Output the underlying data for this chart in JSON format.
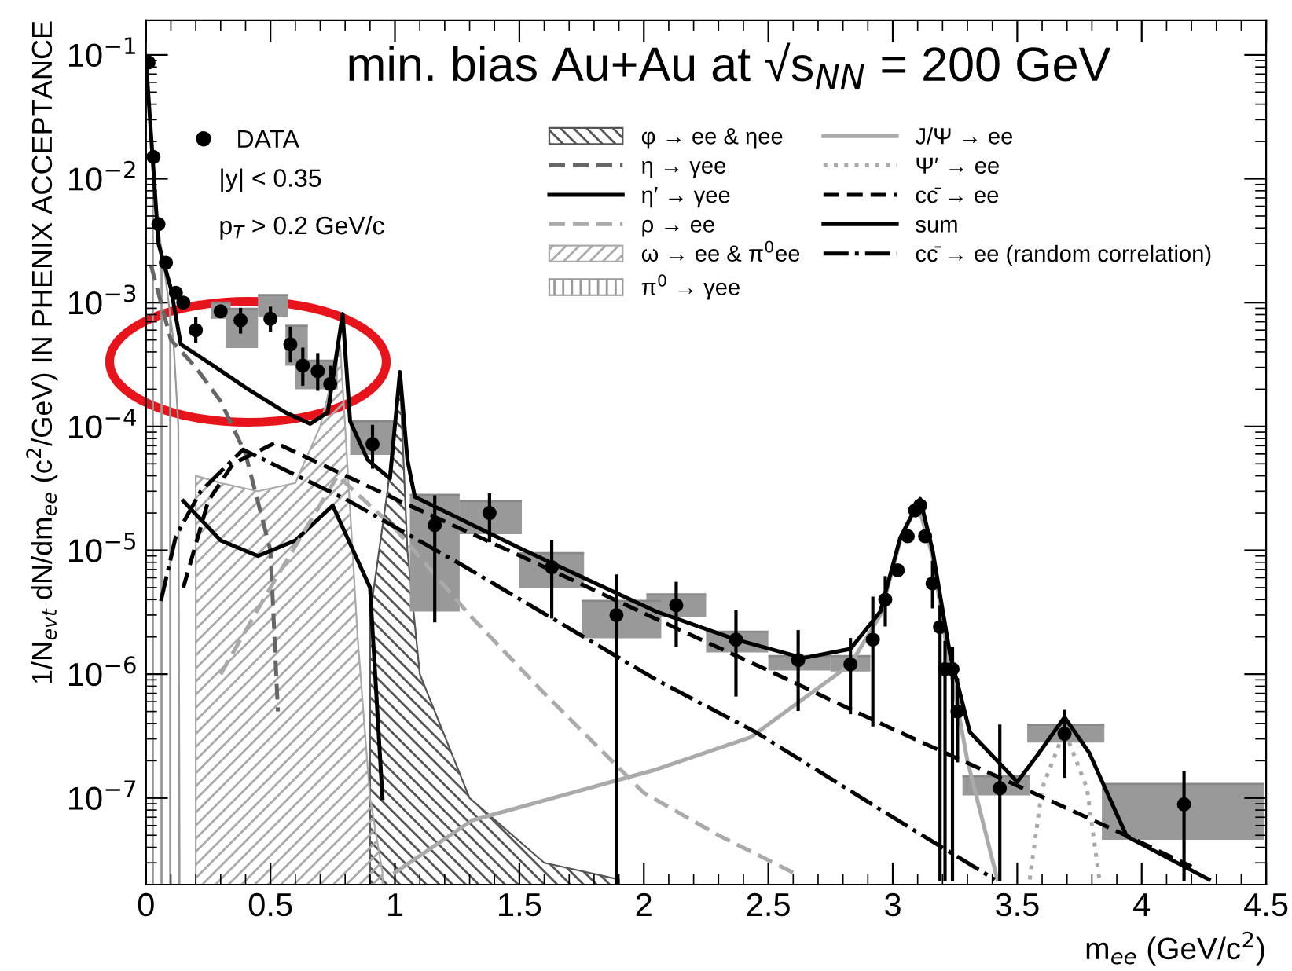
{
  "chart_data": {
    "type": "line",
    "title": "min. bias Au+Au at √s$_{NN}$ = 200 GeV",
    "xlabel": "m$_{ee}$ (GeV/c$^{2}$)",
    "ylabel": "1/N$_{evt}$ dN/dm$_{ee}$ (c$^{2}$/GeV) IN PHENIX ACCEPTANCE",
    "annotations": [
      "|y| < 0.35",
      "p$_{T}$ > 0.2 GeV/c"
    ],
    "log": "y",
    "xlim": [
      0,
      4.5
    ],
    "ylim": [
      2e-08,
      0.19
    ],
    "xticks": [
      0,
      0.5,
      1,
      1.5,
      2,
      2.5,
      3,
      3.5,
      4,
      4.5
    ],
    "yticks": [
      {
        "value": 1e-07,
        "label": "10$^{−7}$"
      },
      {
        "value": 1e-06,
        "label": "10$^{−6}$"
      },
      {
        "value": 1e-05,
        "label": "10$^{−5}$"
      },
      {
        "value": 0.0001,
        "label": "10$^{−4}$"
      },
      {
        "value": 0.001,
        "label": "10$^{−3}$"
      },
      {
        "value": 0.01,
        "label": "10$^{−2}$"
      },
      {
        "value": 0.1,
        "label": "10$^{−1}$"
      }
    ],
    "grid": false,
    "legend": "top",
    "marker": "none",
    "series": [
      {
        "type": "area",
        "name": "φ → ee & ηee",
        "color": "#555555",
        "x": [
          0.9,
          0.97,
          1.02,
          1.05,
          1.1,
          1.3,
          1.6,
          1.9
        ],
        "values": [
          3e-06,
          3e-05,
          0.00025,
          1e-05,
          1e-06,
          1e-07,
          3e-08,
          2.2e-08
        ]
      },
      {
        "type": "area",
        "name": "ω → ee & π$^{0}$ee",
        "color": "#aaaaaa",
        "x": [
          0.2,
          0.3,
          0.45,
          0.6,
          0.7,
          0.78,
          0.8,
          0.85,
          0.9,
          0.95
        ],
        "values": [
          4e-05,
          3.5e-05,
          3e-05,
          3.5e-05,
          0.0001,
          0.00045,
          0.0001,
          2e-06,
          1e-07,
          2.5e-08
        ]
      },
      {
        "type": "area",
        "name": "π$^{0}$ → γee",
        "color": "#999999",
        "x": [
          0,
          0.02,
          0.05,
          0.08,
          0.11,
          0.13,
          0.135
        ],
        "values": [
          0.08,
          0.02,
          0.004,
          0.0015,
          0.0005,
          0.0001,
          2.5e-08
        ]
      },
      {
        "name": "η → γee",
        "color": "#666666",
        "line_style": "dashed",
        "x": [
          0.02,
          0.1,
          0.2,
          0.3,
          0.4,
          0.5,
          0.53
        ],
        "values": [
          0.002,
          0.0005,
          0.0003,
          0.00016,
          6e-05,
          1e-05,
          5e-07
        ]
      },
      {
        "name": "η′ → γee",
        "color": "#000000",
        "line_style": "solid",
        "x": [
          0.15,
          0.3,
          0.45,
          0.6,
          0.75,
          0.9,
          0.95
        ],
        "values": [
          2.5e-05,
          1.2e-05,
          9e-06,
          1.2e-05,
          2.3e-05,
          5e-06,
          1e-07
        ]
      },
      {
        "name": "ρ → ee",
        "color": "#aaaaaa",
        "line_style": "dashed",
        "x": [
          0.3,
          0.5,
          0.77,
          1.0,
          1.3,
          1.6,
          2.0,
          2.3,
          2.6
        ],
        "values": [
          1e-06,
          5e-06,
          4e-05,
          1.5e-05,
          3e-06,
          7e-07,
          1.1e-07,
          5e-08,
          2.5e-08
        ]
      },
      {
        "name": "J/Ψ → ee",
        "color": "#aaaaaa",
        "line_style": "solid",
        "x": [
          1.0,
          1.31,
          2.05,
          2.43,
          2.83,
          2.95,
          3.03,
          3.1,
          3.16,
          3.22,
          3.3,
          3.42
        ],
        "values": [
          2.5e-08,
          6.6e-08,
          1.7e-07,
          3.1e-07,
          1.2e-06,
          3e-06,
          1.2e-05,
          2.4e-05,
          9e-06,
          1.5e-06,
          2e-07,
          2.2e-08
        ]
      },
      {
        "name": "Ψ′ → ee",
        "color": "#aaaaaa",
        "line_style": "dotted",
        "x": [
          3.55,
          3.6,
          3.69,
          3.78,
          3.83
        ],
        "values": [
          2.2e-08,
          1.2e-07,
          3.5e-07,
          1.2e-07,
          2.2e-08
        ]
      },
      {
        "name": "cc̄ → ee",
        "color": "#000000",
        "line_style": "dashed",
        "x": [
          0.15,
          0.25,
          0.35,
          0.52,
          1.0,
          1.5,
          2.0,
          2.5,
          3.0,
          3.5,
          3.9,
          4.2
        ],
        "values": [
          5e-06,
          2.5e-05,
          5e-05,
          7.4e-05,
          2.6e-05,
          9.1e-06,
          3.1e-06,
          1.07e-06,
          3.6e-07,
          1.26e-07,
          5.4e-08,
          2.8e-08
        ]
      },
      {
        "name": "sum",
        "color": "#000000",
        "line_style": "solid",
        "x": [
          0.0,
          0.05,
          0.1,
          0.14,
          0.27,
          0.41,
          0.56,
          0.66,
          0.73,
          0.79,
          0.82,
          0.89,
          0.98,
          1.02,
          1.05,
          1.08,
          1.52,
          2.05,
          2.37,
          2.64,
          2.83,
          2.95,
          3.03,
          3.11,
          3.16,
          3.23,
          3.31,
          3.5,
          3.58,
          3.69,
          3.79,
          3.94,
          4.27
        ],
        "values": [
          0.09,
          0.003,
          0.0013,
          0.00046,
          0.00031,
          0.0002,
          0.00013,
          0.000105,
          0.00013,
          0.00081,
          0.00011,
          5.4e-05,
          3.8e-05,
          0.000275,
          5.4e-05,
          2.7e-05,
          1e-05,
          3.2e-06,
          1.9e-06,
          1.35e-06,
          1.6e-06,
          3.2e-06,
          1.26e-05,
          2.6e-05,
          1e-05,
          1.45e-06,
          3.4e-07,
          1.35e-07,
          2.2e-07,
          4.5e-07,
          2.3e-07,
          4.9e-08,
          2.2e-08
        ]
      },
      {
        "name": "cc̄ → ee (random correlation)",
        "color": "#000000",
        "line_style": "dashdot",
        "x": [
          0.06,
          0.12,
          0.22,
          0.39,
          0.8,
          1.27,
          2.05,
          2.45,
          3.0,
          3.41
        ],
        "values": [
          3.9e-06,
          1.3e-05,
          3e-05,
          6.5e-05,
          2.6e-05,
          7.6e-06,
          9e-07,
          3.4e-07,
          7e-08,
          2.2e-08
        ]
      },
      {
        "type": "bar",
        "color": "#999999",
        "x": [
          0.3,
          0.385,
          0.51,
          0.605,
          0.685,
          0.91,
          1.16,
          1.385,
          1.63,
          1.91,
          2.13,
          2.375,
          2.625,
          2.83,
          3.415,
          3.695,
          4.165
        ],
        "base": [
          0.00074,
          0.00043,
          0.00076,
          0.00031,
          0.0002,
          5.9e-05,
          3.2e-06,
          1.35e-05,
          5e-06,
          1.95e-06,
          2.9e-06,
          1.5e-06,
          1.07e-06,
          1.05e-06,
          1.05e-07,
          2.8e-07,
          4.6e-08
        ],
        "values": [
          0.00026,
          0.00046,
          0.00039,
          0.00034,
          0.00014,
          5.1e-05,
          2.48e-05,
          1.15e-05,
          4.5e-06,
          1.95e-06,
          1.5e-06,
          7e-07,
          3.3e-07,
          3.5e-07,
          4.5e-08,
          1.1e-07,
          8.4e-08
        ],
        "xerrors": [
          0.04,
          0.065,
          0.06,
          0.045,
          0.085,
          0.09,
          0.1,
          0.125,
          0.13,
          0.16,
          0.12,
          0.125,
          0.125,
          0.08,
          0.135,
          0.155,
          0.325
        ]
      },
      {
        "type": "scatter",
        "name": "DATA",
        "color": "#000000",
        "marker": "circle",
        "x": [
          0.01,
          0.03,
          0.05,
          0.08,
          0.12,
          0.15,
          0.2,
          0.3,
          0.38,
          0.5,
          0.58,
          0.63,
          0.69,
          0.74,
          0.91,
          1.16,
          1.38,
          1.63,
          1.89,
          2.13,
          2.37,
          2.62,
          2.83,
          2.92,
          2.97,
          3.02,
          3.06,
          3.09,
          3.11,
          3.13,
          3.16,
          3.19,
          3.21,
          3.24,
          3.26,
          3.43,
          3.69,
          4.17
        ],
        "values": [
          0.087,
          0.015,
          0.0043,
          0.0021,
          0.0012,
          0.001,
          0.0006,
          0.00085,
          0.00072,
          0.00074,
          0.00046,
          0.00031,
          0.00028,
          0.00022,
          7.2e-05,
          1.6e-05,
          2e-05,
          7.3e-06,
          3e-06,
          3.6e-06,
          1.9e-06,
          1.3e-06,
          1.2e-06,
          1.9e-06,
          4e-06,
          6.9e-06,
          1.3e-05,
          2.1e-05,
          2.3e-05,
          1.3e-05,
          5.4e-06,
          2.4e-06,
          1.1e-06,
          1.1e-06,
          5e-07,
          1.2e-07,
          3.3e-07,
          8.9e-08
        ],
        "errors": [
          null,
          null,
          null,
          null,
          null,
          null,
          [
            0.00049,
            0.00074
          ],
          null,
          [
            0.00058,
            0.00088
          ],
          [
            0.0006,
            0.0009
          ],
          [
            0.00034,
            0.00062
          ],
          [
            0.00022,
            0.00042
          ],
          [
            0.0002,
            0.00038
          ],
          [
            0.00016,
            0.0003
          ],
          [
            4.7e-05,
            0.0001
          ],
          [
            2.7e-06,
            2.7e-05
          ],
          [
            1.2e-05,
            2.8e-05
          ],
          [
            2.9e-06,
            1.17e-05
          ],
          [
            2e-08,
            6.2e-06
          ],
          [
            1.7e-06,
            5.4e-06
          ],
          [
            6.8e-07,
            3.2e-06
          ],
          [
            5.2e-07,
            2.2e-06
          ],
          [
            4.9e-07,
            1.9e-06
          ],
          [
            3.9e-07,
            4.1e-06
          ],
          [
            2.5e-06,
            6e-06
          ],
          null,
          null,
          null,
          null,
          null,
          [
            3.5e-06,
            8e-06
          ],
          [
            2.2e-08,
            3.5e-06
          ],
          [
            2.2e-08,
            1.8e-06
          ],
          [
            2.2e-08,
            1.6e-06
          ],
          [
            2e-07,
            9e-07
          ],
          [
            2.2e-08,
            3.8e-07
          ],
          [
            1.5e-07,
            5e-07
          ],
          [
            2.2e-08,
            1.6e-07
          ]
        ]
      }
    ]
  }
}
